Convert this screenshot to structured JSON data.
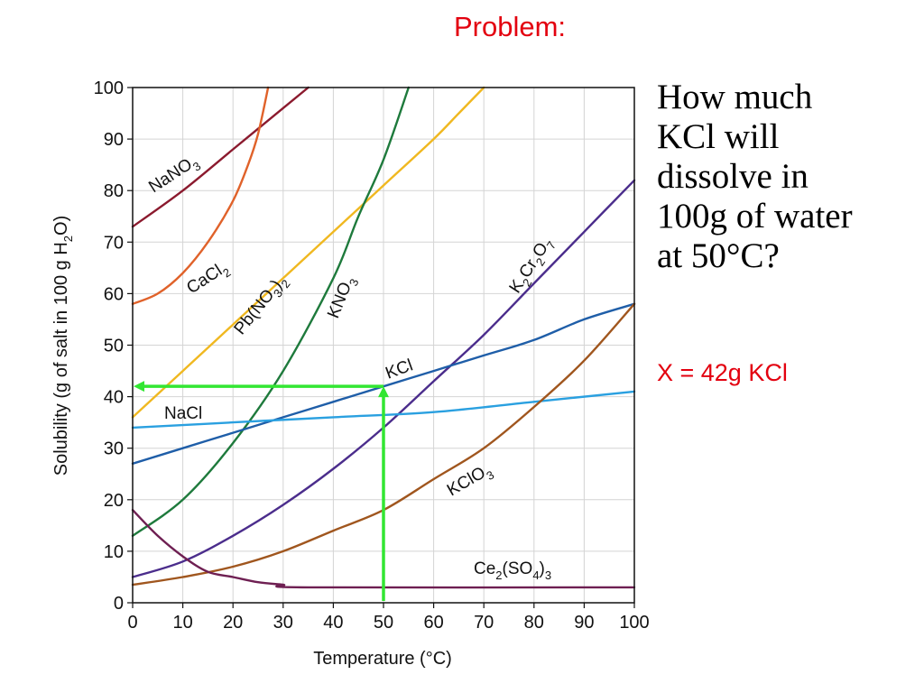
{
  "slide": {
    "title": "Problem:",
    "question_lines": [
      "How much",
      "KCl will",
      "dissolve in",
      "100g of water",
      "at 50°C?"
    ],
    "answer": "X = 42g KCl"
  },
  "chart_data": {
    "type": "line",
    "title": "",
    "xlabel": "Temperature (°C)",
    "ylabel": "Solubility (g of salt in 100 g H2O)",
    "xlim": [
      0,
      100
    ],
    "ylim": [
      0,
      100
    ],
    "xticks": [
      0,
      10,
      20,
      30,
      40,
      50,
      60,
      70,
      80,
      90,
      100
    ],
    "yticks": [
      0,
      10,
      20,
      30,
      40,
      50,
      60,
      70,
      80,
      90,
      100
    ],
    "grid": true,
    "series": [
      {
        "name": "NaNO3",
        "color": "#8b1a2e",
        "points": [
          [
            0,
            73
          ],
          [
            10,
            80
          ],
          [
            20,
            88
          ],
          [
            30,
            96
          ],
          [
            35,
            100
          ]
        ]
      },
      {
        "name": "CaCl2",
        "color": "#e0622a",
        "points": [
          [
            0,
            58
          ],
          [
            5,
            60
          ],
          [
            10,
            64
          ],
          [
            15,
            70
          ],
          [
            20,
            78
          ],
          [
            23,
            85
          ],
          [
            25,
            91
          ],
          [
            27,
            100
          ]
        ]
      },
      {
        "name": "Pb(NO3)2",
        "color": "#f0b820",
        "points": [
          [
            0,
            36
          ],
          [
            10,
            45
          ],
          [
            20,
            54
          ],
          [
            30,
            63
          ],
          [
            40,
            72
          ],
          [
            50,
            81
          ],
          [
            60,
            90
          ],
          [
            65,
            95
          ],
          [
            70,
            100
          ]
        ]
      },
      {
        "name": "KNO3",
        "color": "#1e7a3c",
        "points": [
          [
            0,
            13
          ],
          [
            10,
            20
          ],
          [
            20,
            31
          ],
          [
            30,
            45
          ],
          [
            40,
            63
          ],
          [
            45,
            75
          ],
          [
            50,
            86
          ],
          [
            55,
            100
          ]
        ]
      },
      {
        "name": "K2Cr2O7",
        "color": "#4b2d8c",
        "points": [
          [
            0,
            5
          ],
          [
            10,
            8
          ],
          [
            20,
            13
          ],
          [
            30,
            19
          ],
          [
            40,
            26
          ],
          [
            50,
            34
          ],
          [
            60,
            43
          ],
          [
            70,
            52
          ],
          [
            80,
            62
          ],
          [
            90,
            72
          ],
          [
            100,
            82
          ]
        ]
      },
      {
        "name": "KCl",
        "color": "#1f5ea8",
        "points": [
          [
            0,
            27
          ],
          [
            10,
            30
          ],
          [
            20,
            33
          ],
          [
            30,
            36
          ],
          [
            40,
            39
          ],
          [
            50,
            42
          ],
          [
            60,
            45
          ],
          [
            70,
            48
          ],
          [
            80,
            51
          ],
          [
            90,
            55
          ],
          [
            100,
            58
          ]
        ]
      },
      {
        "name": "NaCl",
        "color": "#2aa0e0",
        "points": [
          [
            0,
            34
          ],
          [
            20,
            35
          ],
          [
            40,
            36
          ],
          [
            60,
            37
          ],
          [
            80,
            39
          ],
          [
            100,
            41
          ]
        ]
      },
      {
        "name": "KClO3",
        "color": "#a0561e",
        "points": [
          [
            0,
            3.5
          ],
          [
            10,
            5
          ],
          [
            20,
            7
          ],
          [
            30,
            10
          ],
          [
            40,
            14
          ],
          [
            50,
            18
          ],
          [
            60,
            24
          ],
          [
            70,
            30
          ],
          [
            80,
            38
          ],
          [
            90,
            47
          ],
          [
            100,
            58
          ]
        ]
      },
      {
        "name": "Ce2(SO4)3",
        "color": "#6e1f52",
        "points": [
          [
            0,
            18
          ],
          [
            5,
            13
          ],
          [
            10,
            9
          ],
          [
            15,
            6
          ],
          [
            20,
            5
          ],
          [
            25,
            4
          ],
          [
            30,
            3.5
          ],
          [
            35,
            3
          ],
          [
            100,
            3
          ]
        ]
      }
    ],
    "guide": {
      "color": "#32e632",
      "x": 50,
      "y": 42
    }
  }
}
